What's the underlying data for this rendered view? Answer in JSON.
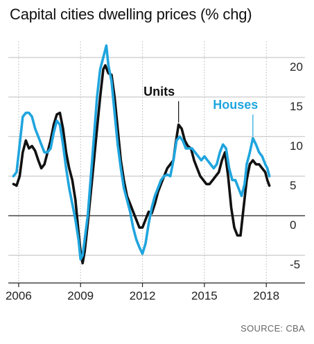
{
  "chart_data": {
    "type": "line",
    "title": "Capital cities dwelling prices (% chg)",
    "source": "SOURCE: CBA",
    "xlim": [
      2005.5,
      2018.8
    ],
    "ylim": [
      -8.5,
      22
    ],
    "y_ticks": [
      20,
      15,
      10,
      5,
      0,
      -5
    ],
    "y_tick_labels": [
      "20",
      "15",
      "10",
      "5",
      "0",
      "-5"
    ],
    "x_ticks": [
      2006,
      2009,
      2012,
      2015,
      2018
    ],
    "x_tick_labels": [
      "2006",
      "2009",
      "2012",
      "2015",
      "2018"
    ],
    "zero_line": 0,
    "grid": true,
    "series": [
      {
        "name": "Units",
        "color": "#111111",
        "points": [
          [
            2005.75,
            4.0
          ],
          [
            2005.9,
            3.8
          ],
          [
            2006.05,
            5.0
          ],
          [
            2006.2,
            8.0
          ],
          [
            2006.35,
            9.5
          ],
          [
            2006.5,
            8.5
          ],
          [
            2006.65,
            8.8
          ],
          [
            2006.8,
            8.2
          ],
          [
            2006.95,
            7.0
          ],
          [
            2007.1,
            6.0
          ],
          [
            2007.25,
            6.5
          ],
          [
            2007.4,
            8.0
          ],
          [
            2007.55,
            9.5
          ],
          [
            2007.7,
            11.5
          ],
          [
            2007.85,
            12.8
          ],
          [
            2008.0,
            13.0
          ],
          [
            2008.15,
            11.0
          ],
          [
            2008.3,
            8.0
          ],
          [
            2008.45,
            6.0
          ],
          [
            2008.6,
            4.5
          ],
          [
            2008.75,
            2.0
          ],
          [
            2008.9,
            -2.0
          ],
          [
            2009.0,
            -4.5
          ],
          [
            2009.1,
            -6.0
          ],
          [
            2009.2,
            -4.5
          ],
          [
            2009.35,
            -1.0
          ],
          [
            2009.5,
            3.0
          ],
          [
            2009.65,
            7.0
          ],
          [
            2009.8,
            11.0
          ],
          [
            2009.95,
            15.0
          ],
          [
            2010.1,
            18.5
          ],
          [
            2010.2,
            19.0
          ],
          [
            2010.35,
            18.0
          ],
          [
            2010.5,
            17.8
          ],
          [
            2010.65,
            15.0
          ],
          [
            2010.8,
            11.0
          ],
          [
            2010.95,
            7.0
          ],
          [
            2011.1,
            4.5
          ],
          [
            2011.25,
            2.5
          ],
          [
            2011.4,
            1.5
          ],
          [
            2011.55,
            0.5
          ],
          [
            2011.7,
            -0.5
          ],
          [
            2011.85,
            -1.5
          ],
          [
            2012.0,
            -1.5
          ],
          [
            2012.15,
            -0.5
          ],
          [
            2012.3,
            0.5
          ],
          [
            2012.45,
            0.3
          ],
          [
            2012.6,
            1.5
          ],
          [
            2012.75,
            3.0
          ],
          [
            2012.9,
            4.0
          ],
          [
            2013.05,
            5.0
          ],
          [
            2013.2,
            6.0
          ],
          [
            2013.35,
            6.5
          ],
          [
            2013.5,
            7.0
          ],
          [
            2013.6,
            9.0
          ],
          [
            2013.75,
            11.5
          ],
          [
            2013.9,
            11.0
          ],
          [
            2014.05,
            9.5
          ],
          [
            2014.2,
            8.8
          ],
          [
            2014.35,
            8.5
          ],
          [
            2014.5,
            7.0
          ],
          [
            2014.65,
            6.0
          ],
          [
            2014.8,
            5.0
          ],
          [
            2014.95,
            4.5
          ],
          [
            2015.1,
            4.0
          ],
          [
            2015.25,
            4.0
          ],
          [
            2015.4,
            4.5
          ],
          [
            2015.55,
            5.0
          ],
          [
            2015.7,
            5.5
          ],
          [
            2015.85,
            7.0
          ],
          [
            2016.0,
            8.0
          ],
          [
            2016.15,
            5.0
          ],
          [
            2016.3,
            1.0
          ],
          [
            2016.45,
            -1.5
          ],
          [
            2016.6,
            -2.5
          ],
          [
            2016.75,
            -2.5
          ],
          [
            2016.9,
            1.0
          ],
          [
            2017.05,
            4.5
          ],
          [
            2017.2,
            6.5
          ],
          [
            2017.35,
            7.0
          ],
          [
            2017.5,
            6.5
          ],
          [
            2017.65,
            6.5
          ],
          [
            2017.8,
            6.0
          ],
          [
            2017.95,
            5.5
          ],
          [
            2018.05,
            4.5
          ],
          [
            2018.15,
            3.8
          ]
        ]
      },
      {
        "name": "Houses",
        "color": "#1fa5de",
        "points": [
          [
            2005.75,
            5.0
          ],
          [
            2005.9,
            5.5
          ],
          [
            2006.05,
            9.0
          ],
          [
            2006.2,
            12.5
          ],
          [
            2006.35,
            13.0
          ],
          [
            2006.5,
            13.0
          ],
          [
            2006.65,
            12.5
          ],
          [
            2006.8,
            11.0
          ],
          [
            2006.95,
            10.0
          ],
          [
            2007.1,
            9.0
          ],
          [
            2007.25,
            8.0
          ],
          [
            2007.4,
            8.0
          ],
          [
            2007.55,
            8.5
          ],
          [
            2007.7,
            10.5
          ],
          [
            2007.85,
            12.0
          ],
          [
            2008.0,
            11.5
          ],
          [
            2008.15,
            9.0
          ],
          [
            2008.3,
            6.0
          ],
          [
            2008.45,
            3.5
          ],
          [
            2008.6,
            1.5
          ],
          [
            2008.75,
            -0.5
          ],
          [
            2008.9,
            -3.0
          ],
          [
            2009.0,
            -5.5
          ],
          [
            2009.1,
            -5.0
          ],
          [
            2009.2,
            -3.0
          ],
          [
            2009.35,
            0.0
          ],
          [
            2009.5,
            5.0
          ],
          [
            2009.65,
            10.0
          ],
          [
            2009.8,
            15.0
          ],
          [
            2009.95,
            18.5
          ],
          [
            2010.1,
            20.0
          ],
          [
            2010.25,
            21.5
          ],
          [
            2010.35,
            19.0
          ],
          [
            2010.5,
            17.0
          ],
          [
            2010.65,
            13.0
          ],
          [
            2010.8,
            9.0
          ],
          [
            2010.95,
            6.0
          ],
          [
            2011.1,
            3.5
          ],
          [
            2011.25,
            2.0
          ],
          [
            2011.4,
            0.5
          ],
          [
            2011.55,
            -1.5
          ],
          [
            2011.7,
            -3.0
          ],
          [
            2011.85,
            -4.0
          ],
          [
            2012.0,
            -4.8
          ],
          [
            2012.15,
            -3.5
          ],
          [
            2012.3,
            -1.0
          ],
          [
            2012.45,
            1.0
          ],
          [
            2012.6,
            2.5
          ],
          [
            2012.75,
            3.5
          ],
          [
            2012.9,
            4.5
          ],
          [
            2013.05,
            5.0
          ],
          [
            2013.2,
            5.2
          ],
          [
            2013.35,
            5.0
          ],
          [
            2013.5,
            7.0
          ],
          [
            2013.65,
            9.5
          ],
          [
            2013.8,
            10.0
          ],
          [
            2013.95,
            9.5
          ],
          [
            2014.1,
            8.5
          ],
          [
            2014.25,
            8.5
          ],
          [
            2014.4,
            8.5
          ],
          [
            2014.55,
            8.0
          ],
          [
            2014.7,
            7.5
          ],
          [
            2014.85,
            7.0
          ],
          [
            2015.0,
            7.5
          ],
          [
            2015.15,
            7.0
          ],
          [
            2015.3,
            6.5
          ],
          [
            2015.45,
            6.0
          ],
          [
            2015.6,
            6.5
          ],
          [
            2015.75,
            8.0
          ],
          [
            2015.9,
            9.0
          ],
          [
            2016.05,
            8.5
          ],
          [
            2016.2,
            6.0
          ],
          [
            2016.35,
            4.5
          ],
          [
            2016.5,
            4.5
          ],
          [
            2016.65,
            3.5
          ],
          [
            2016.8,
            2.5
          ],
          [
            2016.95,
            4.0
          ],
          [
            2017.05,
            6.5
          ],
          [
            2017.2,
            8.0
          ],
          [
            2017.35,
            9.8
          ],
          [
            2017.5,
            9.0
          ],
          [
            2017.65,
            8.0
          ],
          [
            2017.8,
            7.5
          ],
          [
            2017.95,
            6.5
          ],
          [
            2018.05,
            6.0
          ],
          [
            2018.15,
            5.0
          ]
        ]
      }
    ],
    "annotations": [
      {
        "text": "Units",
        "series": "Units",
        "x": 2013.75,
        "y": 11.5,
        "color": "#111111"
      },
      {
        "text": "Houses",
        "series": "Houses",
        "x": 2017.35,
        "y": 9.8,
        "color": "#1fa5de"
      }
    ]
  }
}
